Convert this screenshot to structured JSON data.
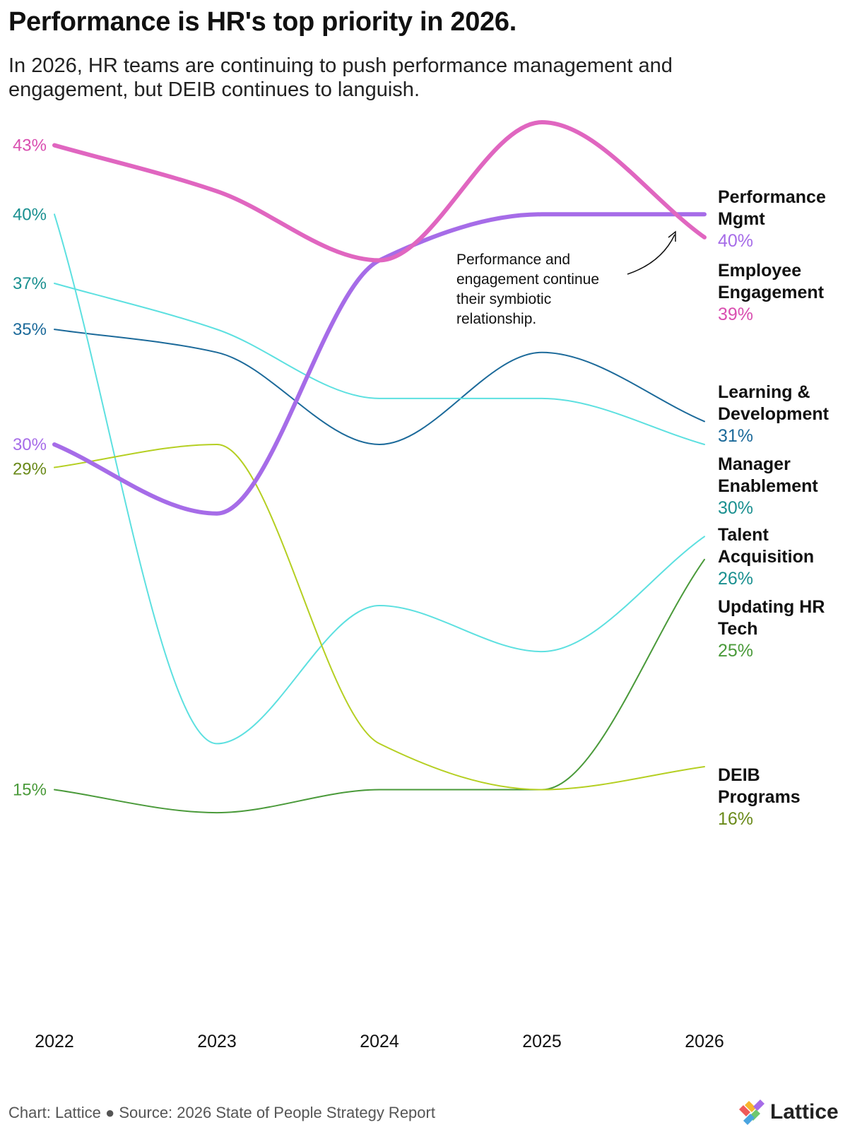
{
  "header": {
    "title": "Performance is HR's top priority in 2026.",
    "subtitle": "In 2026, HR teams are continuing to push performance management and engagement, but DEIB continues to languish."
  },
  "footer": {
    "source": "Chart: Lattice ● Source: 2026 State of People Strategy Report",
    "brand": "Lattice",
    "brand_icon": "lattice-logo-icon"
  },
  "chart_data": {
    "type": "line",
    "title": "Performance is HR's top priority in 2026.",
    "xlabel": "",
    "ylabel": "",
    "ylim": [
      4,
      45
    ],
    "grid": false,
    "categories": [
      "2022",
      "2023",
      "2024",
      "2025",
      "2026"
    ],
    "series": [
      {
        "name": "Performance Mgmt",
        "name_lines": [
          "Performance",
          "Mgmt"
        ],
        "values": [
          30,
          27,
          38,
          40,
          40
        ],
        "color": "#a66ce8",
        "start_label": "30%",
        "end_label": "40%",
        "value_color": "#a66ce8",
        "width": 6
      },
      {
        "name": "Employee Engagement",
        "name_lines": [
          "Employee",
          "Engagement"
        ],
        "values": [
          43,
          41,
          38,
          44,
          39
        ],
        "color": "#e066c0",
        "start_label": "43%",
        "end_label": "39%",
        "value_color": "#d94fb0",
        "width": 6
      },
      {
        "name": "Learning & Development",
        "name_lines": [
          "Learning &",
          "Development"
        ],
        "values": [
          35,
          34,
          30,
          34,
          31
        ],
        "color": "#1c6a9a",
        "start_label": "35%",
        "end_label": "31%",
        "value_color": "#1c6a9a",
        "width": 2
      },
      {
        "name": "Manager Enablement",
        "name_lines": [
          "Manager",
          "Enablement"
        ],
        "values": [
          37,
          35,
          32,
          32,
          30
        ],
        "color": "#5de0e0",
        "start_label": "37%",
        "end_label": "30%",
        "value_color": "#1a9090",
        "width": 2
      },
      {
        "name": "Talent Acquisition",
        "name_lines": [
          "Talent",
          "Acquisition"
        ],
        "values": [
          40,
          17,
          23,
          21,
          26
        ],
        "color": "#5de0e0",
        "start_label": "40%",
        "end_label": "26%",
        "value_color": "#1a9090",
        "width": 2
      },
      {
        "name": "Updating HR Tech",
        "name_lines": [
          "Updating HR",
          "Tech"
        ],
        "values": [
          15,
          14,
          15,
          15,
          25
        ],
        "color": "#4a9a3a",
        "start_label": "15%",
        "end_label": "25%",
        "value_color": "#4a9a3a",
        "width": 2
      },
      {
        "name": "DEIB Programs",
        "name_lines": [
          "DEIB",
          "Programs"
        ],
        "values": [
          29,
          30,
          17,
          15,
          16
        ],
        "color": "#b5cf22",
        "start_label": "29%",
        "end_label": "16%",
        "value_color": "#6a8a1a",
        "width": 2
      }
    ],
    "annotations": [
      {
        "text_lines": [
          "Performance and",
          "engagement continue",
          "their symbiotic",
          "relationship."
        ],
        "target": "2026"
      }
    ]
  }
}
